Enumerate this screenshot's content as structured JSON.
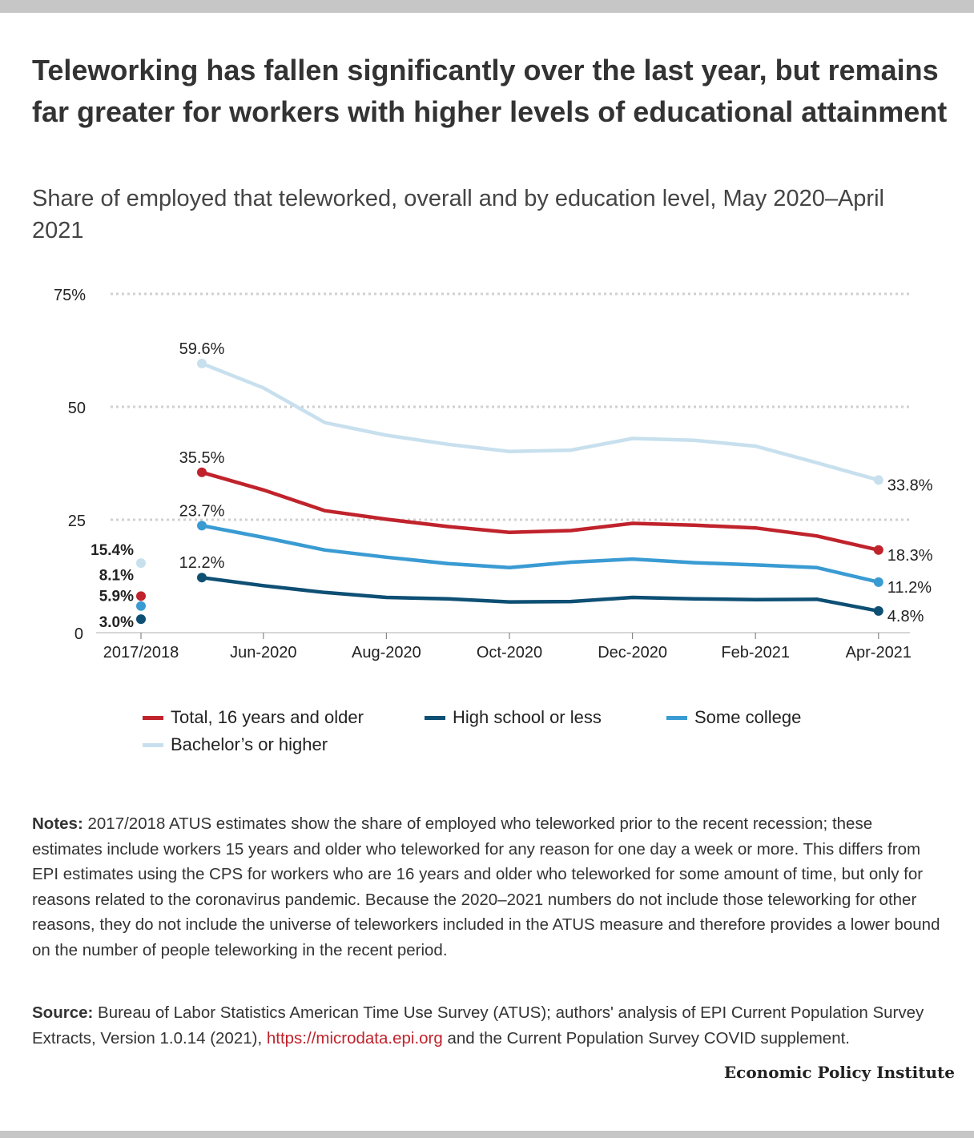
{
  "title": "Teleworking has fallen significantly over the last year, but remains far greater for workers with higher levels of educational attainment",
  "subtitle": "Share of employed that teleworked, overall and by education level, May 2020–April 2021",
  "chart_data": {
    "type": "line",
    "y_ticks": [
      "75%",
      "50",
      "25",
      "0"
    ],
    "y_tick_values": [
      75,
      50,
      25,
      0
    ],
    "ylim": [
      0,
      75
    ],
    "grid": true,
    "legend_position": "bottom",
    "x_labels": [
      "2017/2018",
      "Jun-2020",
      "Aug-2020",
      "Oct-2020",
      "Dec-2020",
      "Feb-2021",
      "Apr-2021"
    ],
    "months": [
      "May-2020",
      "Jun-2020",
      "Jul-2020",
      "Aug-2020",
      "Sep-2020",
      "Oct-2020",
      "Nov-2020",
      "Dec-2020",
      "Jan-2021",
      "Feb-2021",
      "Mar-2021",
      "Apr-2021"
    ],
    "baseline_category": "2017/2018",
    "series": [
      {
        "name": "Total, 16 years and older",
        "color": "#c0232c",
        "baseline": 8.1,
        "baseline_label": "8.1%",
        "values": [
          35.5,
          31.6,
          27.0,
          25.1,
          23.5,
          22.2,
          22.6,
          24.2,
          23.8,
          23.2,
          21.4,
          18.3
        ],
        "first_label": "35.5%",
        "last_label": "18.3%"
      },
      {
        "name": "High school or less",
        "color": "#0e4f74",
        "baseline": 3.0,
        "baseline_label": "3.0%",
        "values": [
          12.2,
          10.4,
          8.9,
          7.8,
          7.5,
          6.8,
          6.9,
          7.8,
          7.5,
          7.3,
          7.4,
          4.8
        ],
        "first_label": "12.2%",
        "last_label": "4.8%"
      },
      {
        "name": "Some college",
        "color": "#3a9bd3",
        "baseline": 5.9,
        "baseline_label": "5.9%",
        "values": [
          23.7,
          21.1,
          18.3,
          16.7,
          15.3,
          14.4,
          15.6,
          16.3,
          15.5,
          15.0,
          14.4,
          11.2
        ],
        "first_label": "23.7%",
        "last_label": "11.2%"
      },
      {
        "name": "Bachelor’s or higher",
        "color": "#c8e0ee",
        "baseline": 15.4,
        "baseline_label": "15.4%",
        "values": [
          59.6,
          54.2,
          46.5,
          43.7,
          41.7,
          40.1,
          40.4,
          43.0,
          42.6,
          41.3,
          37.6,
          33.8
        ],
        "first_label": "59.6%",
        "last_label": "33.8%"
      }
    ]
  },
  "notes": {
    "label": "Notes:",
    "text": " 2017/2018 ATUS estimates show the share of employed who teleworked prior to the recent recession; these estimates include workers 15 years and older who teleworked for any reason for one day a week or more. This differs from EPI estimates using the CPS for workers who are 16 years and older who teleworked for some amount of time, but only for reasons related to the coronavirus pandemic. Because the 2020–2021 numbers do not include those teleworking for other reasons, they do not include the universe of teleworkers included in the ATUS measure and therefore provides a lower bound on the number of people teleworking in the recent period."
  },
  "source": {
    "label": "Source:",
    "text_before": " Bureau of Labor Statistics American Time Use Survey (ATUS); authors' analysis of EPI Current Population Survey Extracts, Version 1.0.14 (2021), ",
    "url": "https://microdata.epi.org",
    "text_after": " and the Current Population Survey COVID supplement."
  },
  "brand": "Economic Policy Institute"
}
